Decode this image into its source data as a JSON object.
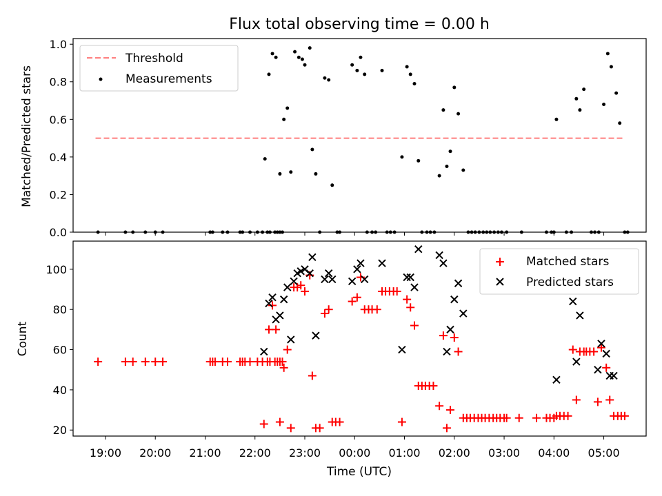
{
  "chart_data": [
    {
      "type": "scatter",
      "title": "Flux total observing time = 0.00 h",
      "ylabel": "Matched/Predicted stars",
      "ylim": [
        0,
        1.03
      ],
      "yticks": [
        "0.0",
        "0.2",
        "0.4",
        "0.6",
        "0.8",
        "1.0"
      ],
      "legend_position": "upper-left",
      "threshold": {
        "name": "Threshold",
        "value": 0.5,
        "x_start": -5.2,
        "x_end": 5.4,
        "color": "#ff7f7f",
        "style": "dashed"
      },
      "series": [
        {
          "name": "Measurements",
          "color": "#000000",
          "points": [
            [
              -5.15,
              0
            ],
            [
              -4.6,
              0
            ],
            [
              -4.45,
              0
            ],
            [
              -4.2,
              0
            ],
            [
              -4.0,
              0
            ],
            [
              -3.85,
              0
            ],
            [
              -2.9,
              0
            ],
            [
              -2.85,
              0
            ],
            [
              -2.65,
              0
            ],
            [
              -2.55,
              0
            ],
            [
              -2.3,
              0
            ],
            [
              -2.25,
              0
            ],
            [
              -2.1,
              0
            ],
            [
              -1.95,
              0
            ],
            [
              -1.85,
              0
            ],
            [
              -1.75,
              0
            ],
            [
              -1.7,
              0
            ],
            [
              -1.6,
              0
            ],
            [
              -1.55,
              0
            ],
            [
              -1.5,
              0
            ],
            [
              -1.45,
              0
            ],
            [
              -1.8,
              0.39
            ],
            [
              -1.72,
              0.84
            ],
            [
              -1.65,
              0.95
            ],
            [
              -1.58,
              0.93
            ],
            [
              -1.5,
              0.31
            ],
            [
              -1.42,
              0.6
            ],
            [
              -1.35,
              0.66
            ],
            [
              -1.28,
              0.32
            ],
            [
              -1.2,
              0.96
            ],
            [
              -1.12,
              0.93
            ],
            [
              -1.05,
              0.92
            ],
            [
              -1.0,
              0.89
            ],
            [
              -0.9,
              0.98
            ],
            [
              -0.85,
              0.44
            ],
            [
              -0.78,
              0.31
            ],
            [
              -0.7,
              0
            ],
            [
              -0.6,
              0.82
            ],
            [
              -0.52,
              0.81
            ],
            [
              -0.45,
              0.25
            ],
            [
              -0.35,
              0
            ],
            [
              -0.3,
              0
            ],
            [
              -0.05,
              0.89
            ],
            [
              0.05,
              0.86
            ],
            [
              0.12,
              0.93
            ],
            [
              0.2,
              0.84
            ],
            [
              0.25,
              0
            ],
            [
              0.35,
              0
            ],
            [
              0.42,
              0
            ],
            [
              0.55,
              0.86
            ],
            [
              0.65,
              0
            ],
            [
              0.72,
              0
            ],
            [
              0.8,
              0
            ],
            [
              0.95,
              0.4
            ],
            [
              1.05,
              0.88
            ],
            [
              1.12,
              0.84
            ],
            [
              1.2,
              0.79
            ],
            [
              1.28,
              0.38
            ],
            [
              1.35,
              0
            ],
            [
              1.45,
              0
            ],
            [
              1.52,
              0
            ],
            [
              1.6,
              0
            ],
            [
              1.7,
              0.3
            ],
            [
              1.78,
              0.65
            ],
            [
              1.85,
              0.35
            ],
            [
              1.92,
              0.43
            ],
            [
              2.0,
              0.77
            ],
            [
              2.08,
              0.63
            ],
            [
              2.18,
              0.33
            ],
            [
              2.28,
              0
            ],
            [
              2.35,
              0
            ],
            [
              2.42,
              0
            ],
            [
              2.5,
              0
            ],
            [
              2.58,
              0
            ],
            [
              2.65,
              0
            ],
            [
              2.72,
              0
            ],
            [
              2.8,
              0
            ],
            [
              2.88,
              0
            ],
            [
              2.95,
              0
            ],
            [
              3.05,
              0
            ],
            [
              3.35,
              0
            ],
            [
              3.85,
              0
            ],
            [
              3.95,
              0
            ],
            [
              4.0,
              0
            ],
            [
              4.05,
              0.6
            ],
            [
              4.25,
              0
            ],
            [
              4.35,
              0
            ],
            [
              4.45,
              0.71
            ],
            [
              4.52,
              0.65
            ],
            [
              4.6,
              0.76
            ],
            [
              4.75,
              0
            ],
            [
              4.82,
              0
            ],
            [
              4.9,
              0
            ],
            [
              5.0,
              0.68
            ],
            [
              5.08,
              0.95
            ],
            [
              5.15,
              0.88
            ],
            [
              5.25,
              0.74
            ],
            [
              5.32,
              0.58
            ],
            [
              5.42,
              0
            ],
            [
              5.48,
              0
            ]
          ]
        }
      ]
    },
    {
      "type": "scatter",
      "xlabel": "Time (UTC)",
      "ylabel": "Count",
      "ylim": [
        17,
        114
      ],
      "yticks": [
        "20",
        "40",
        "60",
        "80",
        "100"
      ],
      "xticks": [
        {
          "value": -5,
          "label": "19:00"
        },
        {
          "value": -4,
          "label": "20:00"
        },
        {
          "value": -3,
          "label": "21:00"
        },
        {
          "value": -2,
          "label": "22:00"
        },
        {
          "value": -1,
          "label": "23:00"
        },
        {
          "value": 0,
          "label": "00:00"
        },
        {
          "value": 1,
          "label": "01:00"
        },
        {
          "value": 2,
          "label": "02:00"
        },
        {
          "value": 3,
          "label": "03:00"
        },
        {
          "value": 4,
          "label": "04:00"
        },
        {
          "value": 5,
          "label": "05:00"
        }
      ],
      "xlim": [
        -5.65,
        5.85
      ],
      "legend_position": "upper-right",
      "series": [
        {
          "name": "Matched stars",
          "marker": "plus",
          "color": "#ff0000",
          "points": [
            [
              -5.15,
              54
            ],
            [
              -4.6,
              54
            ],
            [
              -4.45,
              54
            ],
            [
              -4.2,
              54
            ],
            [
              -4.0,
              54
            ],
            [
              -3.85,
              54
            ],
            [
              -2.9,
              54
            ],
            [
              -2.85,
              54
            ],
            [
              -2.8,
              54
            ],
            [
              -2.65,
              54
            ],
            [
              -2.55,
              54
            ],
            [
              -2.3,
              54
            ],
            [
              -2.25,
              54
            ],
            [
              -2.2,
              54
            ],
            [
              -2.1,
              54
            ],
            [
              -1.95,
              54
            ],
            [
              -1.85,
              54
            ],
            [
              -1.75,
              54
            ],
            [
              -1.7,
              54
            ],
            [
              -1.6,
              54
            ],
            [
              -1.55,
              54
            ],
            [
              -1.5,
              54
            ],
            [
              -1.45,
              54
            ],
            [
              -1.82,
              23
            ],
            [
              -1.72,
              70
            ],
            [
              -1.65,
              82
            ],
            [
              -1.58,
              70
            ],
            [
              -1.5,
              24
            ],
            [
              -1.42,
              51
            ],
            [
              -1.35,
              60
            ],
            [
              -1.28,
              21
            ],
            [
              -1.22,
              91
            ],
            [
              -1.15,
              91
            ],
            [
              -1.08,
              92
            ],
            [
              -1.0,
              89
            ],
            [
              -0.9,
              97
            ],
            [
              -0.85,
              47
            ],
            [
              -0.78,
              21
            ],
            [
              -0.7,
              21
            ],
            [
              -0.6,
              78
            ],
            [
              -0.52,
              80
            ],
            [
              -0.45,
              24
            ],
            [
              -0.38,
              24
            ],
            [
              -0.3,
              24
            ],
            [
              -0.05,
              84
            ],
            [
              0.05,
              86
            ],
            [
              0.12,
              96
            ],
            [
              0.2,
              80
            ],
            [
              0.28,
              80
            ],
            [
              0.35,
              80
            ],
            [
              0.45,
              80
            ],
            [
              0.55,
              89
            ],
            [
              0.62,
              89
            ],
            [
              0.7,
              89
            ],
            [
              0.78,
              89
            ],
            [
              0.85,
              89
            ],
            [
              0.95,
              24
            ],
            [
              1.05,
              85
            ],
            [
              1.12,
              81
            ],
            [
              1.2,
              72
            ],
            [
              1.28,
              42
            ],
            [
              1.35,
              42
            ],
            [
              1.42,
              42
            ],
            [
              1.5,
              42
            ],
            [
              1.58,
              42
            ],
            [
              1.7,
              32
            ],
            [
              1.78,
              67
            ],
            [
              1.85,
              21
            ],
            [
              1.92,
              30
            ],
            [
              2.0,
              66
            ],
            [
              2.08,
              59
            ],
            [
              2.18,
              26
            ],
            [
              2.25,
              26
            ],
            [
              2.32,
              26
            ],
            [
              2.4,
              26
            ],
            [
              2.48,
              26
            ],
            [
              2.55,
              26
            ],
            [
              2.62,
              26
            ],
            [
              2.7,
              26
            ],
            [
              2.78,
              26
            ],
            [
              2.85,
              26
            ],
            [
              2.92,
              26
            ],
            [
              3.0,
              26
            ],
            [
              3.05,
              26
            ],
            [
              3.3,
              26
            ],
            [
              3.65,
              26
            ],
            [
              3.85,
              26
            ],
            [
              3.92,
              26
            ],
            [
              4.0,
              26
            ],
            [
              4.05,
              27
            ],
            [
              4.12,
              27
            ],
            [
              4.2,
              27
            ],
            [
              4.28,
              27
            ],
            [
              4.38,
              60
            ],
            [
              4.45,
              35
            ],
            [
              4.52,
              59
            ],
            [
              4.6,
              59
            ],
            [
              4.65,
              59
            ],
            [
              4.72,
              59
            ],
            [
              4.8,
              59
            ],
            [
              4.88,
              34
            ],
            [
              4.95,
              61
            ],
            [
              5.05,
              51
            ],
            [
              5.12,
              35
            ],
            [
              5.2,
              27
            ],
            [
              5.28,
              27
            ],
            [
              5.35,
              27
            ],
            [
              5.42,
              27
            ]
          ]
        },
        {
          "name": "Predicted stars",
          "marker": "x",
          "color": "#000000",
          "points": [
            [
              -1.82,
              59
            ],
            [
              -1.72,
              83
            ],
            [
              -1.65,
              86
            ],
            [
              -1.58,
              75
            ],
            [
              -1.5,
              77
            ],
            [
              -1.42,
              85
            ],
            [
              -1.35,
              91
            ],
            [
              -1.28,
              65
            ],
            [
              -1.22,
              94
            ],
            [
              -1.15,
              98
            ],
            [
              -1.08,
              99
            ],
            [
              -1.0,
              100
            ],
            [
              -0.9,
              98
            ],
            [
              -0.85,
              106
            ],
            [
              -0.78,
              67
            ],
            [
              -0.6,
              95
            ],
            [
              -0.52,
              98
            ],
            [
              -0.45,
              95
            ],
            [
              -0.05,
              94
            ],
            [
              0.05,
              100
            ],
            [
              0.12,
              103
            ],
            [
              0.2,
              95
            ],
            [
              0.55,
              103
            ],
            [
              0.95,
              60
            ],
            [
              1.05,
              96
            ],
            [
              1.12,
              96
            ],
            [
              1.2,
              91
            ],
            [
              1.28,
              110
            ],
            [
              1.7,
              107
            ],
            [
              1.78,
              103
            ],
            [
              1.85,
              59
            ],
            [
              1.92,
              70
            ],
            [
              2.0,
              85
            ],
            [
              2.08,
              93
            ],
            [
              2.18,
              78
            ],
            [
              4.05,
              45
            ],
            [
              4.38,
              84
            ],
            [
              4.45,
              54
            ],
            [
              4.52,
              77
            ],
            [
              4.88,
              50
            ],
            [
              4.95,
              63
            ],
            [
              5.05,
              58
            ],
            [
              5.12,
              47
            ],
            [
              5.2,
              47
            ]
          ]
        }
      ]
    }
  ]
}
